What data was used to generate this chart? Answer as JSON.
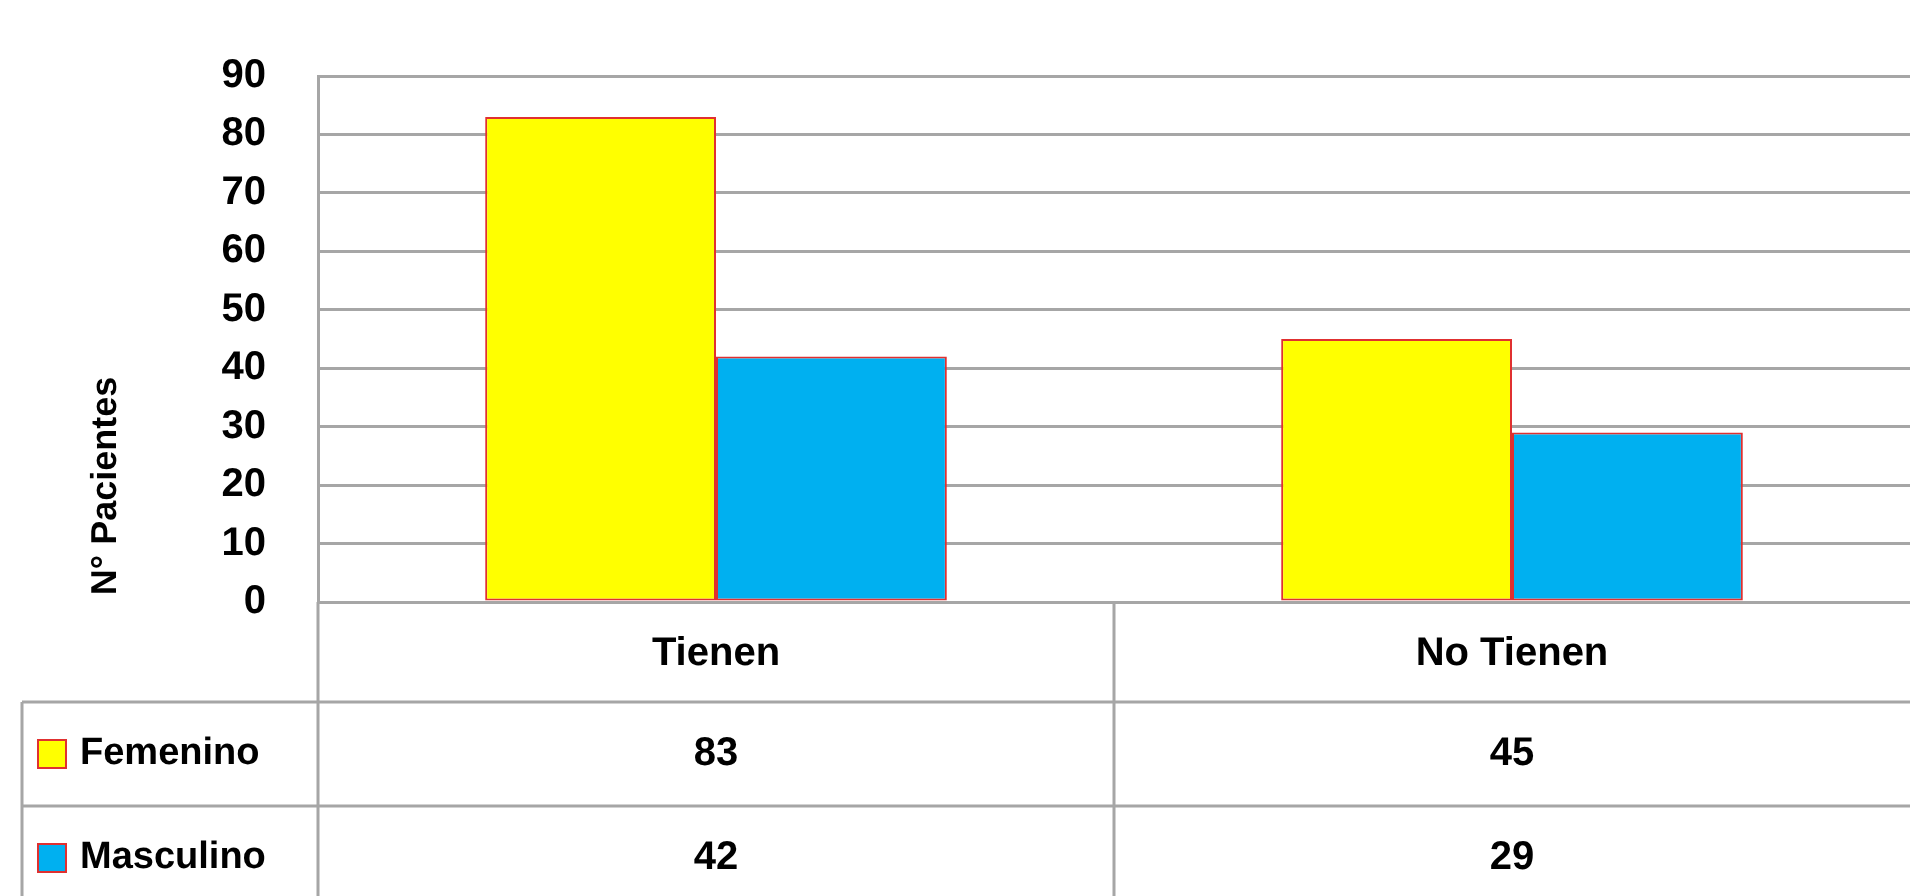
{
  "chart_data": {
    "type": "bar",
    "ylabel": "N° Pacientes",
    "categories": [
      "Tienen",
      "No Tienen"
    ],
    "series": [
      {
        "name": "Femenino",
        "color": "#ffff00",
        "values": [
          83,
          45
        ]
      },
      {
        "name": "Masculino",
        "color": "#00b0f0",
        "values": [
          42,
          29
        ]
      }
    ],
    "ylim": [
      0,
      90
    ],
    "yticks": [
      0,
      10,
      20,
      30,
      40,
      50,
      60,
      70,
      80,
      90
    ],
    "grid": "y",
    "legend": "bottom left",
    "data_labels": true
  }
}
